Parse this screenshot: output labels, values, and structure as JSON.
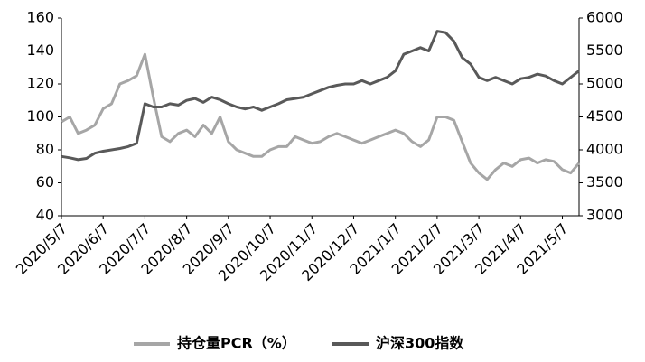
{
  "chart_data": {
    "type": "line",
    "categories": [
      "2020/5/7",
      null,
      null,
      null,
      null,
      "2020/6/7",
      null,
      null,
      null,
      null,
      "2020/7/7",
      null,
      null,
      null,
      null,
      "2020/8/7",
      null,
      null,
      null,
      null,
      "2020/9/7",
      null,
      null,
      null,
      null,
      "2020/10/7",
      null,
      null,
      null,
      null,
      "2020/11/7",
      null,
      null,
      null,
      null,
      "2020/12/7",
      null,
      null,
      null,
      null,
      "2021/1/7",
      null,
      null,
      null,
      null,
      "2021/2/7",
      null,
      null,
      null,
      null,
      "2021/3/7",
      null,
      null,
      null,
      null,
      "2021/4/7",
      null,
      null,
      null,
      null,
      "2021/5/7",
      null,
      null
    ],
    "series": [
      {
        "name": "持仓量PCR（%）",
        "color": "#a6a6a6",
        "values": [
          97,
          100,
          90,
          92,
          95,
          105,
          108,
          120,
          122,
          125,
          138,
          112,
          88,
          85,
          90,
          92,
          88,
          95,
          90,
          100,
          85,
          80,
          78,
          76,
          76,
          80,
          82,
          82,
          88,
          86,
          84,
          85,
          88,
          90,
          88,
          86,
          84,
          86,
          88,
          90,
          92,
          90,
          85,
          82,
          86,
          100,
          100,
          98,
          85,
          72,
          66,
          62,
          68,
          72,
          70,
          74,
          75,
          72,
          74,
          73,
          68,
          66,
          72
        ]
      },
      {
        "name": "沪深300指数",
        "color": "#595959",
        "axis": "y2",
        "values": [
          3900,
          3880,
          3850,
          3870,
          3950,
          3980,
          4000,
          4020,
          4050,
          4100,
          4700,
          4650,
          4650,
          4700,
          4680,
          4750,
          4780,
          4720,
          4800,
          4760,
          4700,
          4650,
          4620,
          4650,
          4600,
          4650,
          4700,
          4760,
          4780,
          4800,
          4850,
          4900,
          4950,
          4980,
          5000,
          5000,
          5050,
          5000,
          5050,
          5100,
          5200,
          5450,
          5500,
          5550,
          5500,
          5800,
          5780,
          5650,
          5400,
          5300,
          5100,
          5050,
          5100,
          5050,
          5000,
          5080,
          5100,
          5150,
          5120,
          5050,
          5000,
          5100,
          5200
        ]
      }
    ],
    "ylim": [
      40,
      160
    ],
    "yticks": [
      40,
      60,
      80,
      100,
      120,
      140,
      160
    ],
    "y2lim": [
      3000,
      6000
    ],
    "y2ticks": [
      3000,
      3500,
      4000,
      4500,
      5000,
      5500,
      6000
    ]
  }
}
